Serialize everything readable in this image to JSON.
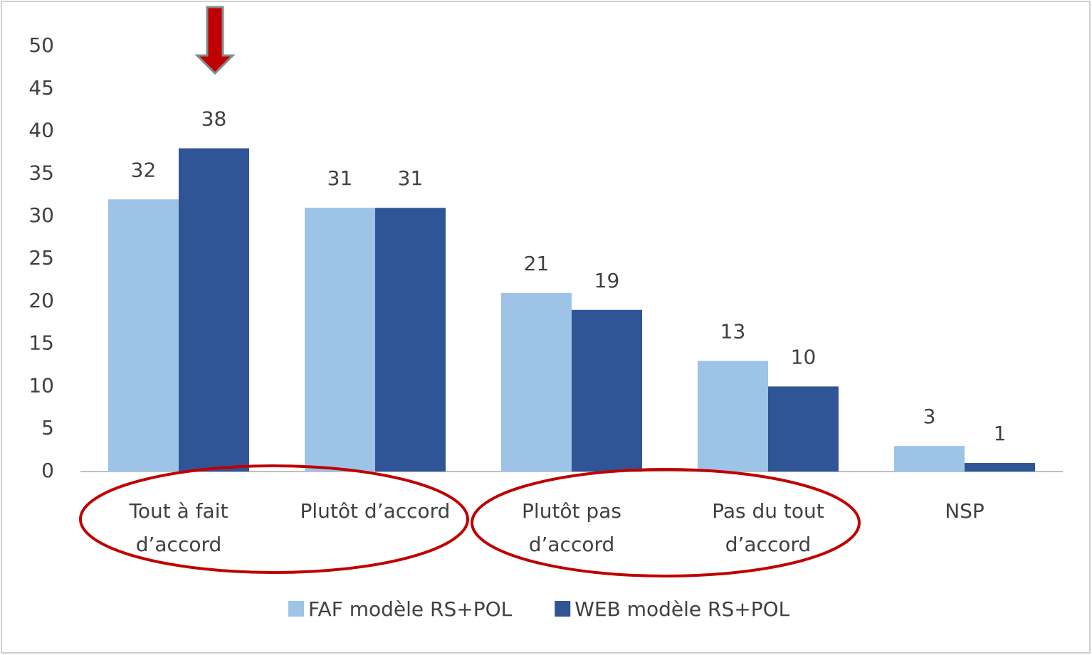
{
  "chart_data": {
    "type": "bar",
    "categories": [
      "Tout à fait d’accord",
      "Plutôt d’accord",
      "Plutôt pas d’accord",
      "Pas du tout d’accord",
      "NSP"
    ],
    "series": [
      {
        "name": "FAF modèle RS+POL",
        "color": "#9dc3e6",
        "values": [
          32,
          31,
          21,
          13,
          3
        ]
      },
      {
        "name": "WEB modèle RS+POL",
        "color": "#2f5597",
        "values": [
          38,
          31,
          19,
          10,
          1
        ]
      }
    ],
    "ylim": [
      0,
      50
    ],
    "yticks": [
      0,
      5,
      10,
      15,
      20,
      25,
      30,
      35,
      40,
      45,
      50
    ],
    "grid": false,
    "legend": "bottom"
  }
}
